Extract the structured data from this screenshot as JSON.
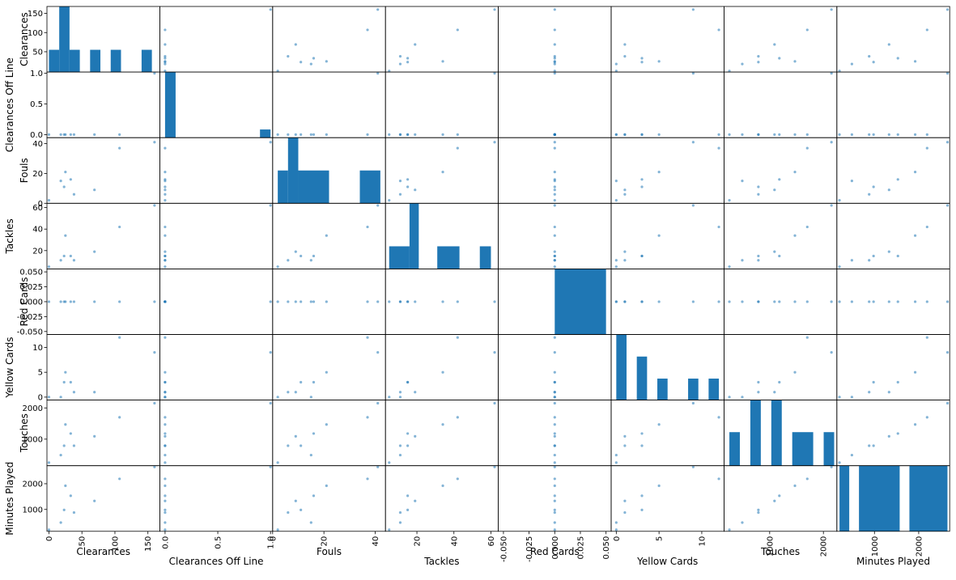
{
  "chart_data": {
    "type": "scatter",
    "kind": "scatter-matrix",
    "diagonal": "histogram",
    "colors": {
      "marks": "#1f77b4",
      "frame": "#000000",
      "background": "#ffffff"
    },
    "columns": [
      "Clearances",
      "Clearances Off Line",
      "Fouls",
      "Tackles",
      "Red Cards",
      "Yellow Cards",
      "Touches",
      "Minutes Played"
    ],
    "rows": [
      [
        0,
        0,
        2,
        5,
        0,
        0,
        250,
        210
      ],
      [
        18,
        0,
        15,
        11,
        0,
        0,
        490,
        490
      ],
      [
        25,
        0,
        21,
        34,
        0,
        5,
        1470,
        1920
      ],
      [
        23,
        0,
        11,
        15,
        0,
        3,
        790,
        980
      ],
      [
        33,
        0,
        16,
        15,
        0,
        3,
        1180,
        1530
      ],
      [
        38,
        0,
        6,
        11,
        0,
        1,
        790,
        880
      ],
      [
        69,
        0,
        9,
        19,
        0,
        1,
        1090,
        1330
      ],
      [
        107,
        0,
        37,
        42,
        0,
        12,
        1700,
        2190
      ],
      [
        160,
        1,
        41,
        62,
        0,
        9,
        2150,
        2650
      ]
    ],
    "histograms": [
      {
        "column": "Clearances",
        "bins": [
          [
            0,
            15.6,
            53
          ],
          [
            15.6,
            31.2,
            156
          ],
          [
            31.2,
            46.8,
            53
          ],
          [
            62.4,
            78,
            53
          ],
          [
            93.6,
            109.2,
            53
          ],
          [
            140.4,
            156,
            53
          ]
        ]
      },
      {
        "column": "Clearances Off Line",
        "bins": [
          [
            0,
            0.1,
            8
          ],
          [
            0.9,
            1.0,
            1
          ]
        ]
      },
      {
        "column": "Fouls",
        "bins": [
          [
            2,
            6,
            20
          ],
          [
            6,
            10,
            40
          ],
          [
            10,
            22,
            20
          ],
          [
            34,
            42,
            20
          ]
        ]
      },
      {
        "column": "Tackles",
        "bins": [
          [
            5,
            16,
            21
          ],
          [
            16,
            21,
            61
          ],
          [
            31,
            43,
            21
          ],
          [
            54,
            60,
            21
          ]
        ]
      },
      {
        "column": "Red Cards",
        "bins": [
          [
            0,
            0.05,
            0.05
          ]
        ]
      },
      {
        "column": "Yellow Cards",
        "bins": [
          [
            0,
            1.2,
            11.6
          ],
          [
            2.4,
            3.6,
            7.7
          ],
          [
            4.8,
            6.0,
            3.8
          ],
          [
            8.4,
            9.6,
            3.8
          ],
          [
            10.8,
            12,
            3.8
          ]
        ]
      },
      {
        "column": "Touches",
        "bins": [
          [
            250,
            445,
            1100
          ],
          [
            640,
            835,
            2150
          ],
          [
            1030,
            1225,
            2150
          ],
          [
            1420,
            1810,
            1100
          ],
          [
            2005,
            2200,
            1100
          ]
        ]
      },
      {
        "column": "Minutes Played",
        "bins": [
          [
            210,
            430,
            2650
          ],
          [
            650,
            1570,
            2650
          ],
          [
            1790,
            2650,
            2650
          ]
        ]
      }
    ],
    "axes": [
      {
        "column": "Clearances",
        "range": [
          -3,
          168
        ],
        "ticks": [
          0,
          50,
          100,
          150
        ],
        "tick_labels": [
          "0",
          "50",
          "100",
          "150"
        ],
        "left_ticks": [
          50,
          100,
          150
        ],
        "left_tick_labels": [
          "50",
          "100",
          "150"
        ]
      },
      {
        "column": "Clearances Off Line",
        "range": [
          -0.05,
          1.02
        ],
        "ticks": [
          0,
          0.5,
          1.0
        ],
        "tick_labels": [
          "0.0",
          "0.5",
          "1.0"
        ]
      },
      {
        "column": "Fouls",
        "range": [
          0,
          44
        ],
        "ticks": [
          0,
          20,
          40
        ],
        "tick_labels": [
          "0",
          "20",
          "40"
        ]
      },
      {
        "column": "Tackles",
        "range": [
          3,
          64
        ],
        "ticks": [
          20,
          40,
          60
        ],
        "tick_labels": [
          "20",
          "40",
          "60"
        ]
      },
      {
        "column": "Red Cards",
        "range": [
          -0.055,
          0.055
        ],
        "ticks": [
          -0.05,
          -0.025,
          0,
          0.025,
          0.05
        ],
        "tick_labels": [
          "-0.050",
          "-0.025",
          "0.000",
          "0.025",
          "0.050"
        ]
      },
      {
        "column": "Yellow Cards",
        "range": [
          -0.6,
          12.6
        ],
        "ticks": [
          0,
          5,
          10
        ],
        "tick_labels": [
          "0",
          "5",
          "10"
        ]
      },
      {
        "column": "Touches",
        "range": [
          150,
          2250
        ],
        "ticks": [
          1000,
          2000
        ],
        "tick_labels": [
          "1000",
          "2000"
        ]
      },
      {
        "column": "Minutes Played",
        "range": [
          150,
          2700
        ],
        "ticks": [
          1000,
          2000
        ],
        "tick_labels": [
          "1000",
          "2000"
        ]
      }
    ]
  }
}
